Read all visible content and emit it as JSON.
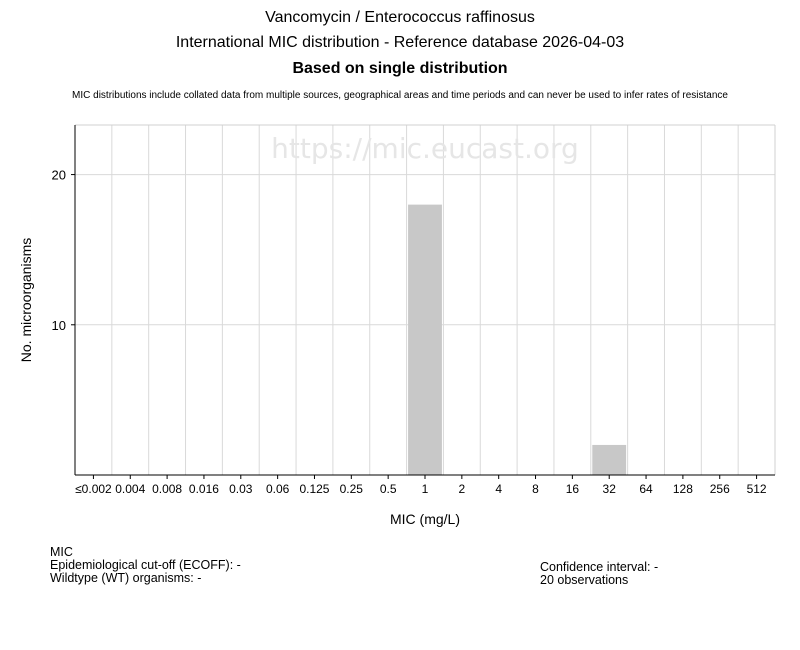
{
  "header": {
    "title": "Vancomycin / Enterococcus raffinosus",
    "subtitle": "International MIC distribution - Reference database 2026-04-03",
    "subtitle2": "Based on single distribution",
    "disclaimer": "MIC distributions include collated data from multiple sources, geographical areas and time periods and can never be used to infer rates of resistance"
  },
  "watermark": "https://mic.eucast.org",
  "chart_data": {
    "type": "bar",
    "categories": [
      "≤0.002",
      "0.004",
      "0.008",
      "0.016",
      "0.03",
      "0.06",
      "0.125",
      "0.25",
      "0.5",
      "1",
      "2",
      "4",
      "8",
      "16",
      "32",
      "64",
      "128",
      "256",
      "512"
    ],
    "values": [
      0,
      0,
      0,
      0,
      0,
      0,
      0,
      0,
      0,
      18,
      0,
      0,
      0,
      0,
      2,
      0,
      0,
      0,
      0
    ],
    "xlabel": "MIC (mg/L)",
    "ylabel": "No. microorganisms",
    "ylim": [
      0,
      23.3
    ],
    "yticks": [
      10,
      20
    ],
    "grid": true,
    "bar_color": "#c8c8c8"
  },
  "info": {
    "mic_label": "MIC",
    "ecoff": "Epidemiological cut-off (ECOFF): -",
    "wt": "Wildtype (WT) organisms:  -",
    "ci": "Confidence interval: -",
    "observations": "20 observations"
  }
}
